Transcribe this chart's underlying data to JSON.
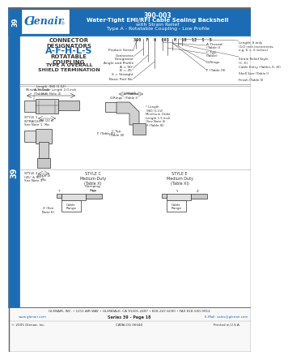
{
  "title_part": "390-003",
  "title_line1": "Water-Tight EMI/RFI Cable Sealing Backshell",
  "title_line2": "with Strain Relief",
  "title_line3": "Type A - Rotatable Coupling - Low Profile",
  "series_num": "39",
  "logo_text": "Glenair",
  "blue": "#1b6cb5",
  "white": "#ffffff",
  "dark": "#333333",
  "lightblue": "#ccddf0",
  "footer_company": "GLENAIR, INC. • 1211 AIR WAY • GLENDALE, CA 91201-2497 • 818-247-6000 • FAX 818-500-9912",
  "footer_web": "www.glenair.com",
  "footer_series": "Series 39 - Page 18",
  "footer_email": "E-Mail: sales@glenair.com",
  "footer_copy": "© 2005 Glenair, Inc.",
  "footer_catalog": "CATALOG 06040",
  "footer_printed": "Printed in U.S.A.",
  "pn_text": "390 F 0 003 M 18 12 S 5",
  "conn_designators": "A-F-H-L-S",
  "label_product_series": "Product Series",
  "label_connector": "Connector\nDesignator",
  "label_angle": "Angle and Profile\nA = 90°\nB = 45°\nS = Straight",
  "label_basic": "Basic Part No.",
  "label_a_thread": "A Thread\n(Table I)",
  "label_c_typ": "C Typ.\n(Table",
  "label_o_rings": "O-Rings",
  "label_f_table": "F (Table III)",
  "label_length": "Length: S only\n(1/2 inch increments;\ne.g. 6 = 3 inches)",
  "label_strain": "Strain Relief Style\n(C, E)",
  "label_cable_entry": "Cable Entry (Tables X, XI)",
  "label_shell": "Shell Size (Table I)",
  "label_finish": "Finish (Table II)",
  "label_style1": "STYLE 1\n(STRAIGHT)\nSee Note 1",
  "label_style2": "STYLE 2\n(45° & 90°)\nSee Note 1",
  "label_style_c": "STYLE C\nMedium-Duty\n(Table X)",
  "label_style_e": "STYLE E\nMedium Duty\n(Table XI)",
  "label_clamping": "Clamping\nBars",
  "label_o_rings2": "O-Rings",
  "label_length2": "Length",
  "label_length_note": "* Length\n.960 (1.52)\nMinimum Order\nLength 1.5 inch\n(See Note 4)",
  "label_dim1": "Length .960 (1.52)\nMinimum Order Length 2.0 inch\n(See Note 4)",
  "label_88": ".88 (22.4)\nMax",
  "label_h_table": "H (Table III)",
  "label_x_note": "X (See\nNote 6)",
  "label_cable_range": "Cable\nRange",
  "label_a_thread2": "A Thread\n(Table I)",
  "label_f_tableIII": "F (Table III)",
  "label_y": "Y",
  "label_z": "Z",
  "label_w": "W",
  "label_t": "T"
}
